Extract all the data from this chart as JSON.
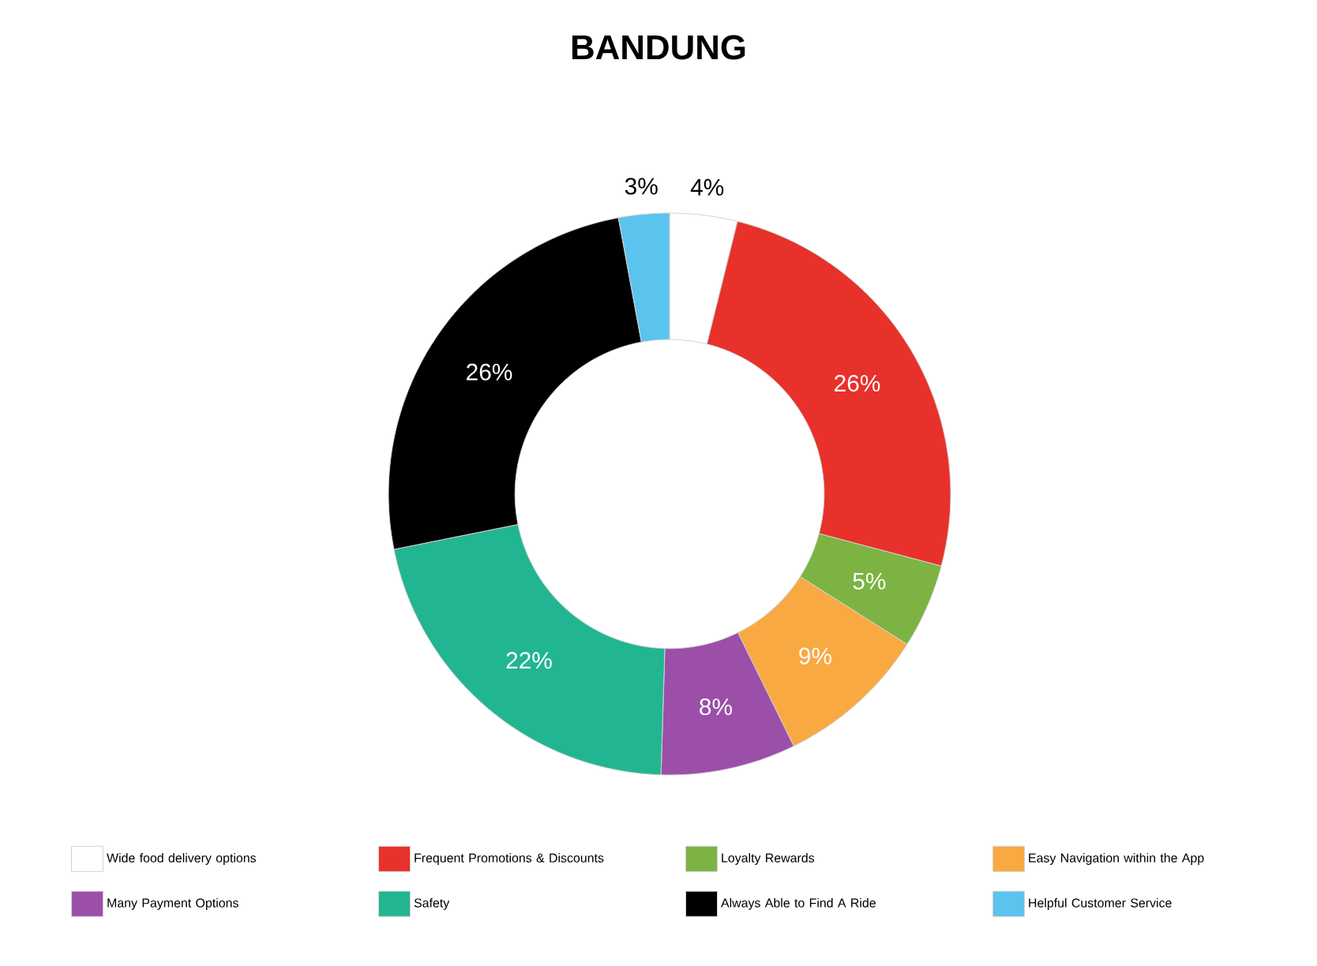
{
  "chart_data": {
    "type": "donut",
    "title": "BANDUNG",
    "categories": [
      "Wide food delivery options",
      "Frequent Promotions & Discounts",
      "Loyalty Rewards",
      "Easy Navigation within the App",
      "Many Payment Options",
      "Safety",
      "Always Able to Find A Ride",
      "Helpful Customer Service"
    ],
    "values": [
      4,
      26,
      5,
      9,
      8,
      22,
      26,
      3
    ],
    "value_labels": [
      "4%",
      "26%",
      "5%",
      "9%",
      "8%",
      "22%",
      "26%",
      "3%"
    ],
    "colors": [
      "#ffffff",
      "#e8312a",
      "#7cb342",
      "#f9a942",
      "#9b4fa8",
      "#22b592",
      "#000000",
      "#5bc4ee"
    ],
    "legend": "bottom"
  }
}
